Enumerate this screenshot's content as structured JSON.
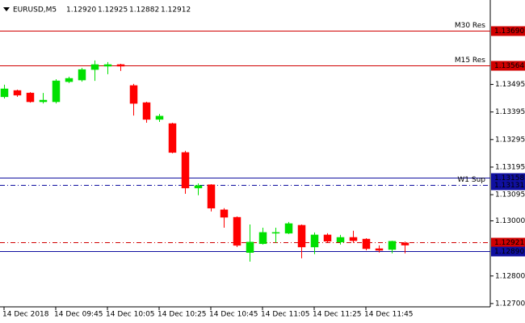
{
  "chart_data": {
    "type": "candlestick",
    "symbol": "EURUSD,M5",
    "quote": [
      "1.12920",
      "1.12925",
      "1.12882",
      "1.12912"
    ],
    "categories": [
      "14 Dec 2018",
      null,
      null,
      null,
      "14 Dec 09:45",
      null,
      null,
      null,
      "14 Dec 10:05",
      null,
      null,
      null,
      "14 Dec 10:25",
      null,
      null,
      null,
      "14 Dec 10:45",
      null,
      null,
      null,
      "14 Dec 11:05",
      null,
      null,
      null,
      "14 Dec 11:25",
      null,
      null,
      null,
      "14 Dec 11:45",
      null,
      null,
      null
    ],
    "open": [
      1.1345,
      1.13473,
      1.13464,
      1.13432,
      1.13432,
      1.13505,
      1.13511,
      1.13549,
      1.13561,
      1.13567,
      1.13491,
      1.13429,
      1.13368,
      1.13353,
      1.13248,
      1.13119,
      1.13131,
      1.1304,
      1.13013,
      1.12885,
      1.12917,
      1.12955,
      1.12955,
      1.12984,
      1.12905,
      1.12949,
      1.12923,
      1.1294,
      1.12934,
      1.12899,
      1.12896,
      1.1292
    ],
    "high": [
      1.13494,
      1.13476,
      1.13467,
      1.13464,
      1.13514,
      1.13523,
      1.13555,
      1.13582,
      1.13576,
      1.1357,
      1.13497,
      1.13432,
      1.13388,
      1.13356,
      1.13254,
      1.13136,
      1.13133,
      1.13046,
      1.13016,
      1.12987,
      1.12975,
      1.12975,
      1.12996,
      1.12987,
      1.12958,
      1.12955,
      1.12949,
      1.12964,
      1.12937,
      1.12911,
      1.12928,
      1.12925
    ],
    "low": [
      1.13444,
      1.1345,
      1.13429,
      1.13426,
      1.13426,
      1.135,
      1.13505,
      1.13508,
      1.13532,
      1.13544,
      1.13382,
      1.13356,
      1.13359,
      1.13245,
      1.13098,
      1.13093,
      1.13034,
      1.12975,
      1.12905,
      1.12852,
      1.12914,
      1.1292,
      1.12952,
      1.12864,
      1.12879,
      1.1292,
      1.12914,
      1.1292,
      1.12893,
      1.12885,
      1.12882,
      1.12882
    ],
    "close": [
      1.13479,
      1.13456,
      1.13432,
      1.13438,
      1.13508,
      1.13517,
      1.13549,
      1.13567,
      1.13567,
      1.13561,
      1.13426,
      1.13368,
      1.1338,
      1.13248,
      1.13119,
      1.13128,
      1.13046,
      1.13013,
      1.12911,
      1.12923,
      1.12958,
      1.12958,
      1.1299,
      1.12905,
      1.12949,
      1.12926,
      1.1294,
      1.12928,
      1.12899,
      1.12893,
      1.12926,
      1.12912
    ],
    "up_color": "#00e000",
    "down_color": "#ff0000",
    "ylim": [
      1.12688,
      1.13772
    ],
    "yticks": [
      1.13495,
      1.13395,
      1.13295,
      1.13195,
      {
        "value": 1.13095,
        "label": "1.13095"
      },
      {
        "value": 1.13,
        "label": "1.13000"
      },
      {
        "value": 1.128,
        "label": "1.12800"
      },
      {
        "value": 1.127,
        "label": "1.12700"
      }
    ],
    "levels": [
      {
        "name": "M30 Res",
        "value": 1.1369,
        "label": "1.13690",
        "color": "#d00000",
        "style": "solid"
      },
      {
        "name": "M15 Res",
        "value": 1.13564,
        "color": "#d00000",
        "style": "solid"
      },
      {
        "value": 1.13158,
        "color": "#1010a0",
        "style": "solid"
      },
      {
        "name": "W1 Sup",
        "value": 1.13131,
        "color": "#1010a0",
        "style": "dashdot"
      },
      {
        "value": 1.12921,
        "color": "#d00000",
        "style": "dashdot"
      },
      {
        "value": 1.1289,
        "label": "1.12890",
        "color": "#1010a0",
        "style": "solid"
      }
    ]
  }
}
